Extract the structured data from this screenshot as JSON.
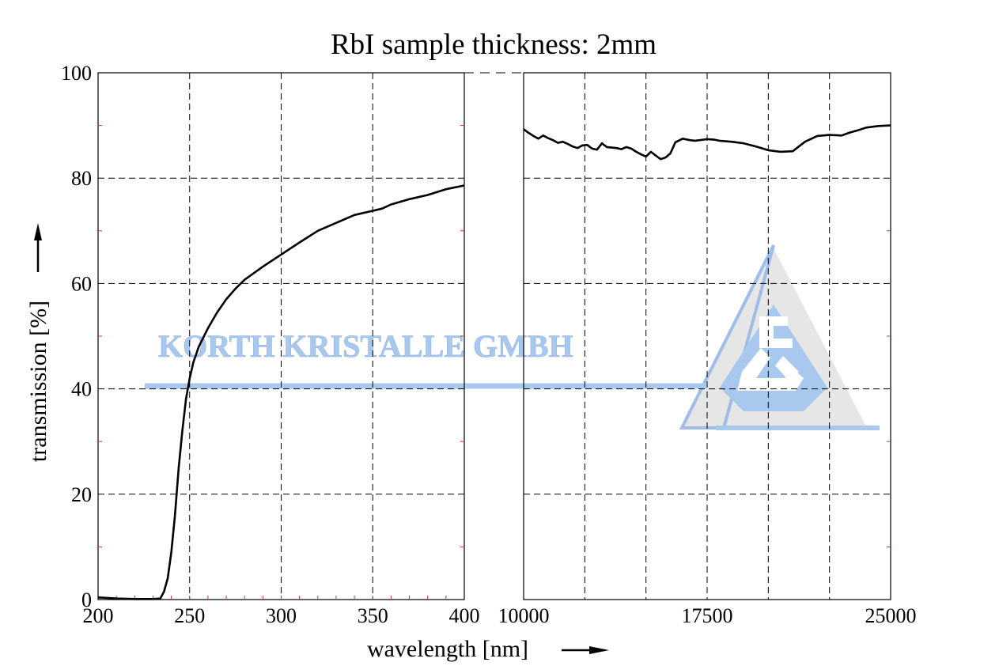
{
  "chart_data": {
    "type": "line",
    "title": "RbI sample thickness: 2mm",
    "xlabel": "wavelength [nm]",
    "ylabel": "transmission [%]",
    "ylim": [
      0,
      100
    ],
    "y_ticks": [
      "0",
      "20",
      "40",
      "60",
      "80",
      "100"
    ],
    "grid": true,
    "axis_break": true,
    "panels": [
      {
        "name": "uv",
        "xlim": [
          200,
          400
        ],
        "x_ticks": [
          "200",
          "250",
          "300",
          "350",
          "400"
        ],
        "x": [
          200,
          210,
          220,
          230,
          234,
          236,
          238,
          240,
          242,
          244,
          246,
          248,
          250,
          252,
          255,
          260,
          265,
          270,
          275,
          280,
          290,
          300,
          310,
          320,
          330,
          340,
          350,
          355,
          360,
          370,
          380,
          390,
          400
        ],
        "y": [
          0.4,
          0.2,
          0.1,
          0.1,
          0.2,
          1.5,
          4,
          9,
          16,
          25,
          32,
          38,
          42,
          45,
          48,
          51.5,
          54.5,
          57,
          59,
          60.7,
          63.2,
          65.5,
          67.8,
          70,
          71.5,
          73,
          73.8,
          74.2,
          75,
          76,
          76.8,
          77.9,
          78.6
        ]
      },
      {
        "name": "ir",
        "xlim": [
          10000,
          25000
        ],
        "x_ticks": [
          "10000",
          "17500",
          "25000"
        ],
        "x": [
          10000,
          10200,
          10400,
          10600,
          10800,
          11000,
          11200,
          11400,
          11600,
          11800,
          12000,
          12200,
          12400,
          12600,
          12800,
          13000,
          13200,
          13400,
          13600,
          13800,
          14000,
          14200,
          14400,
          14600,
          14800,
          15000,
          15200,
          15400,
          15600,
          15800,
          16000,
          16200,
          16500,
          16800,
          17000,
          17200,
          17500,
          17800,
          18000,
          18500,
          19000,
          19500,
          20000,
          20500,
          21000,
          21500,
          22000,
          22500,
          23000,
          23300,
          23600,
          24000,
          24500,
          25000
        ],
        "y": [
          89.3,
          88.6,
          88.0,
          87.5,
          88.1,
          87.6,
          87.2,
          86.7,
          86.9,
          86.5,
          86.0,
          85.7,
          86.2,
          86.3,
          85.6,
          85.4,
          86.6,
          85.9,
          85.8,
          85.7,
          85.5,
          85.9,
          85.6,
          85.0,
          84.5,
          84.1,
          85.0,
          84.3,
          83.6,
          83.9,
          84.7,
          86.8,
          87.5,
          87.2,
          87.1,
          87.2,
          87.4,
          87.3,
          87.1,
          86.9,
          86.6,
          86.0,
          85.3,
          85.0,
          85.1,
          86.9,
          88.0,
          88.2,
          88.1,
          88.6,
          89.0,
          89.6,
          89.9,
          90.0
        ]
      }
    ],
    "colors": {
      "curve": "#000000",
      "grid": "#000000",
      "watermark": "#a9c8ee"
    }
  },
  "watermark": {
    "text": "KORTH KRISTALLE GMBH",
    "icon": "korth-logo-triangle"
  }
}
